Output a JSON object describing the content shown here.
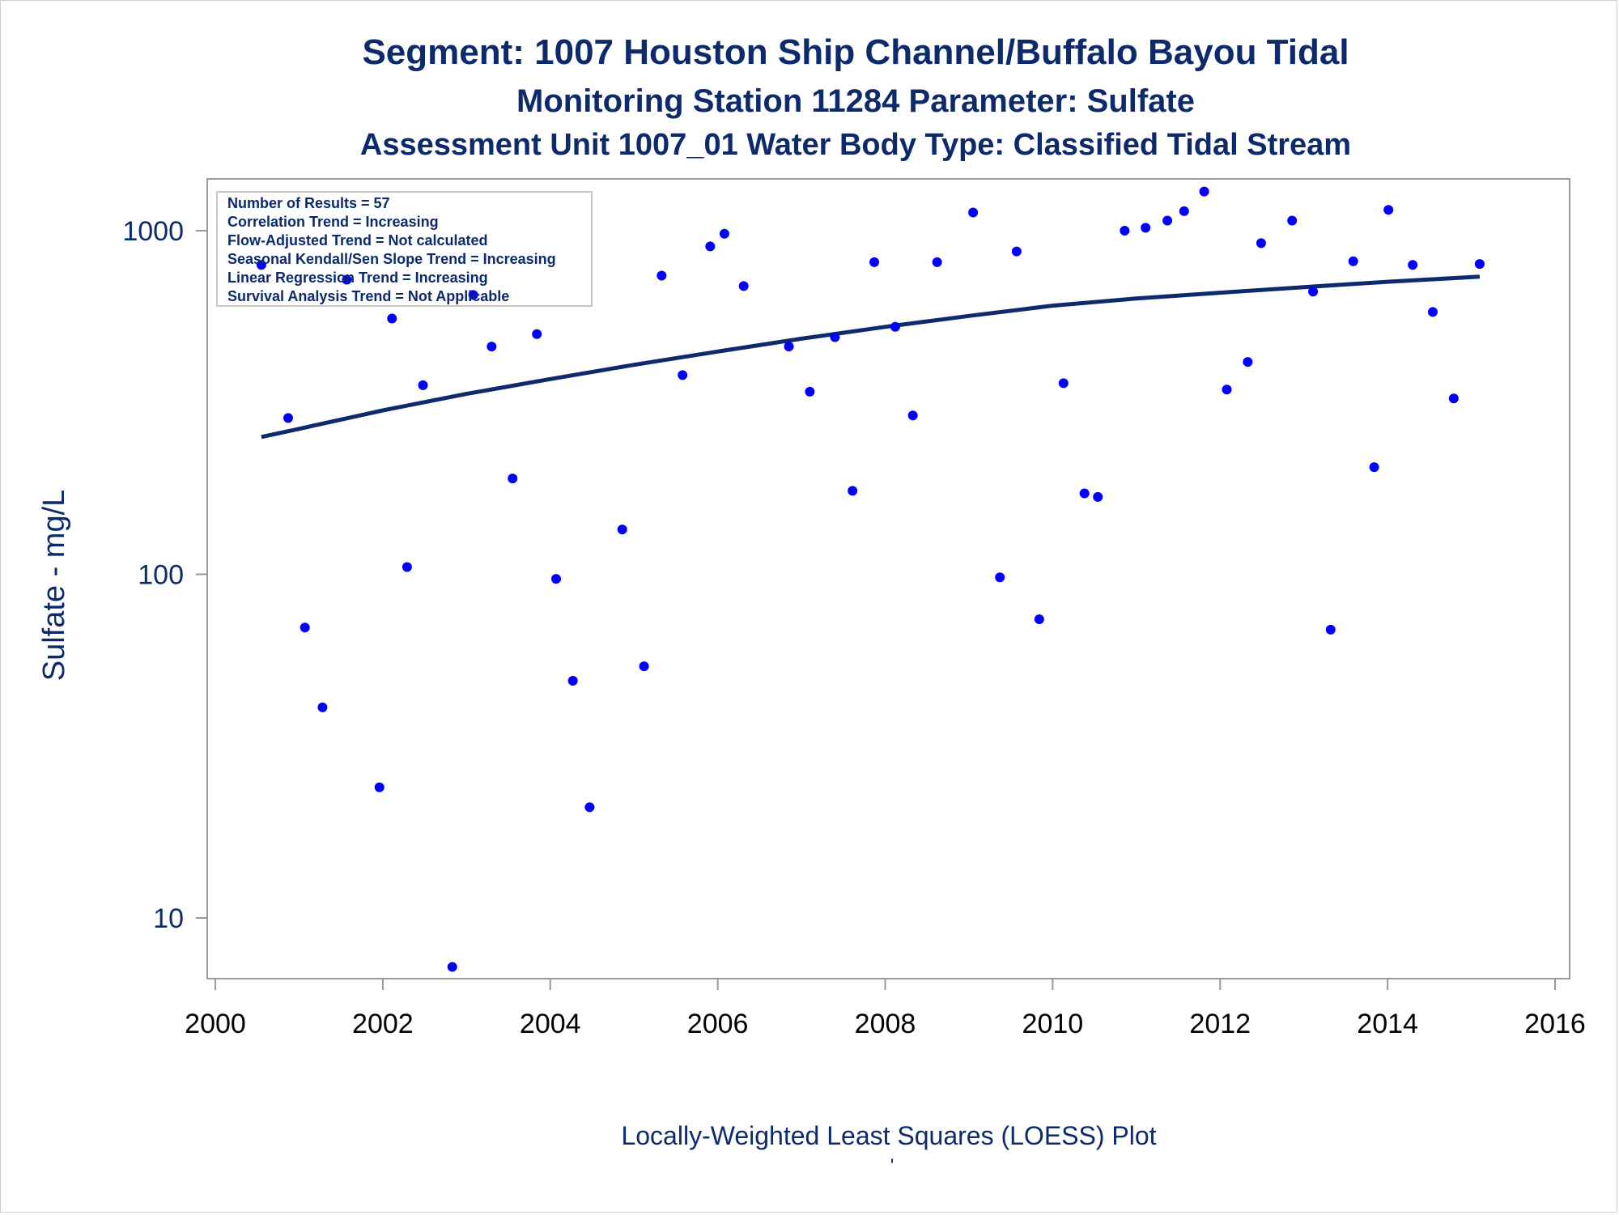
{
  "chart_data": {
    "type": "scatter",
    "title": "Segment: 1007  Houston Ship Channel/Buffalo Bayou Tidal",
    "subtitle": "Monitoring Station 11284 Parameter: Sulfate",
    "subtitle2": "Assessment Unit 1007_01   Water Body Type: Classified Tidal Stream",
    "xlabel": "",
    "ylabel": "Sulfate - mg/L",
    "footnote": "Locally-Weighted Least Squares (LOESS) Plot",
    "footnote2": "'",
    "y_scale": "log",
    "xlim": [
      2000,
      2016
    ],
    "ylim": [
      7.2,
      1440
    ],
    "x_ticks": [
      2000,
      2002,
      2004,
      2006,
      2008,
      2010,
      2012,
      2014,
      2016
    ],
    "y_ticks": [
      10,
      100,
      1000
    ],
    "grid": false,
    "legend_placement": "top-left",
    "stats_box": [
      "Number of Results = 57",
      "Correlation Trend = Increasing",
      "Flow-Adjusted Trend = Not calculated",
      "Seasonal Kendall/Sen Slope Trend = Increasing",
      "Linear Regression Trend = Increasing",
      "Survival Analysis Trend = Not Applicable"
    ],
    "colors": {
      "points": "#0000ff",
      "line": "#0c2a6c",
      "text": "#0c2a6c",
      "frame": "#999999"
    },
    "series": [
      {
        "kind": "points",
        "x": [
          2000.55,
          2000.87,
          2001.07,
          2001.28,
          2001.57,
          2001.96,
          2002.11,
          2002.29,
          2002.48,
          2002.83,
          2003.08,
          2003.3,
          2003.55,
          2003.84,
          2004.07,
          2004.27,
          2004.47,
          2004.86,
          2005.12,
          2005.33,
          2005.58,
          2005.91,
          2006.08,
          2006.31,
          2006.85,
          2007.1,
          2007.4,
          2007.61,
          2007.87,
          2008.12,
          2008.33,
          2008.62,
          2009.05,
          2009.37,
          2009.57,
          2009.84,
          2010.13,
          2010.38,
          2010.54,
          2010.86,
          2011.11,
          2011.37,
          2011.57,
          2011.81,
          2012.08,
          2012.33,
          2012.49,
          2012.86,
          2013.11,
          2013.32,
          2013.59,
          2013.84,
          2014.01,
          2014.3,
          2014.54,
          2014.79,
          2015.1
        ],
        "y": [
          795,
          285,
          70,
          41,
          720,
          24,
          555,
          105,
          355,
          7.2,
          650,
          460,
          190,
          500,
          97,
          49,
          21,
          135,
          54,
          740,
          380,
          900,
          980,
          690,
          460,
          340,
          490,
          175,
          810,
          525,
          290,
          810,
          1130,
          98,
          870,
          74,
          360,
          172,
          168,
          1000,
          1020,
          1070,
          1140,
          1300,
          345,
          415,
          920,
          1070,
          665,
          69,
          815,
          205,
          1150,
          795,
          580,
          325,
          800
        ]
      },
      {
        "kind": "line",
        "name": "",
        "x": [
          2000.55,
          2001.0,
          2002.0,
          2003.0,
          2004.0,
          2005.0,
          2006.0,
          2007.0,
          2008.0,
          2009.0,
          2010.0,
          2011.0,
          2012.0,
          2013.0,
          2014.0,
          2015.1
        ],
        "y": [
          251,
          265,
          300,
          335,
          370,
          407,
          445,
          485,
          525,
          565,
          605,
          635,
          660,
          685,
          710,
          735
        ]
      }
    ]
  }
}
